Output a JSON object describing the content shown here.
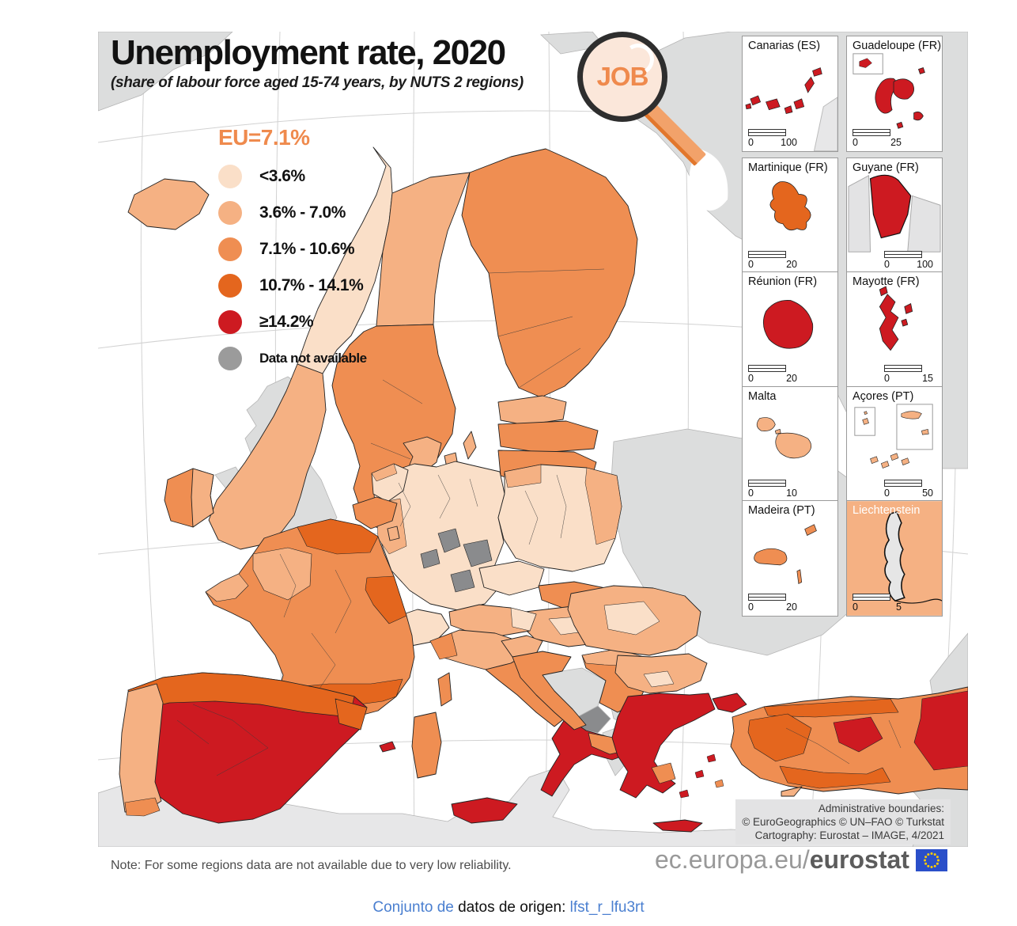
{
  "title": "Unemployment rate, 2020",
  "subtitle": "(share of labour force aged 15-74 years, by NUTS 2 regions)",
  "logo_text": "JOB",
  "legend": {
    "eu_label": "EU=7.1%",
    "classes": [
      {
        "label": "<3.6%",
        "color": "#fadfc8"
      },
      {
        "label": "3.6% - 7.0%",
        "color": "#f5b183"
      },
      {
        "label": "7.1% - 10.6%",
        "color": "#ef8e52"
      },
      {
        "label": "10.7% - 14.1%",
        "color": "#e4661e"
      },
      {
        "label": "≥14.2%",
        "color": "#cd1a21"
      },
      {
        "label": "Data not available",
        "color": "#9b9b9b"
      }
    ]
  },
  "colors": {
    "c1": "#fadfc8",
    "c2": "#f5b183",
    "c3": "#ef8e52",
    "c4": "#e4661e",
    "c5": "#cd1a21",
    "na": "#9b9b9b",
    "na2": "#8a8b8d",
    "noneu": "#dcdddd",
    "noneu2": "#e7e7e8",
    "sea": "#ffffff",
    "eu": "#ef8a4d",
    "link": "#4a7fd0",
    "flag": "#2a4fc9",
    "star": "#ffcc00"
  },
  "insets": [
    {
      "title": "Canarias (ES)",
      "scale_left": "0",
      "scale_right": "100",
      "align": "left"
    },
    {
      "title": "Guadeloupe (FR)",
      "scale_left": "0",
      "scale_right": "25",
      "align": "left"
    },
    {
      "title": "Martinique (FR)",
      "scale_left": "0",
      "scale_right": "20",
      "align": "left"
    },
    {
      "title": "Guyane (FR)",
      "scale_left": "0",
      "scale_right": "100",
      "align": "right"
    },
    {
      "title": "Réunion (FR)",
      "scale_left": "0",
      "scale_right": "20",
      "align": "left"
    },
    {
      "title": "Mayotte (FR)",
      "scale_left": "0",
      "scale_right": "15",
      "align": "right"
    },
    {
      "title": "Malta",
      "scale_left": "0",
      "scale_right": "10",
      "align": "left"
    },
    {
      "title": "Açores (PT)",
      "scale_left": "0",
      "scale_right": "50",
      "align": "right"
    },
    {
      "title": "Madeira (PT)",
      "scale_left": "0",
      "scale_right": "20",
      "align": "left"
    },
    {
      "title": "Liechtenstein",
      "scale_left": "0",
      "scale_right": "5",
      "align": "left"
    }
  ],
  "attribution": {
    "line1": "Administrative boundaries:",
    "line2": "© EuroGeographics © UN–FAO © Turkstat",
    "line3": "Cartography: Eurostat – IMAGE, 4/2021"
  },
  "note": "Note: For some regions data are not available due to very low reliability.",
  "footer": {
    "url_prefix": "ec.europa.eu/",
    "url_bold": "eurostat"
  },
  "caption": {
    "part1": "Conjunto de",
    "part2": " datos de origen: ",
    "link": "lfst_r_lfu3rt"
  },
  "map_data": {
    "type": "choropleth_map",
    "measure": "Unemployment rate 2020, % of labour force aged 15-74, NUTS 2 regions",
    "class_breaks": [
      "<3.6",
      "3.6-7.0",
      "7.1-10.6",
      "10.7-14.1",
      ">=14.2",
      "no data"
    ],
    "eu_average": "7.1%",
    "regions": {
      "Iceland": "3.6-7.0",
      "Norway": "<3.6 / 3.6-7.0",
      "Sweden": "3.6-7.0 north, 7.1-10.6 south",
      "Finland": "7.1-10.6",
      "Estonia": "3.6-7.0",
      "Latvia": "7.1-10.6",
      "Lithuania": "7.1-10.6",
      "United Kingdom": "no data",
      "Ireland": "3.6-10.6",
      "Denmark": "3.6-7.0",
      "Germany": "<3.6-7.0, several regions no data",
      "Netherlands": "<3.6-7.0",
      "Belgium": "<3.6-10.6",
      "Luxembourg": "3.6-7.0",
      "France": "7.1-14.1",
      "Switzerland": "<3.6-7.0",
      "Austria": "<3.6-7.0",
      "Czechia": "<3.6",
      "Poland": "<3.6-7.0",
      "Slovakia": "3.6-10.6",
      "Hungary": "<3.6-7.0",
      "Slovenia": "3.6-7.0",
      "Croatia": "7.1-10.6",
      "Italy": "3.6-10.6 north/centre, >=14.2 south",
      "Spain": "10.7-14.1 north, >=14.2 centre/south",
      "Portugal": "3.6-10.6",
      "Romania": "<3.6-7.0",
      "Bulgaria": "<3.6-7.0",
      "Serbia": "3.6-10.6",
      "Bosnia and Herzegovina": "no data",
      "Montenegro": "no data",
      "Kosovo": "no data",
      "Albania": "no data",
      "North Macedonia": ">=14.2",
      "Greece": ">=14.2",
      "Turkey": "7.1-14.1 with >=14.2 east and centre",
      "Cyprus": "3.6-7.0",
      "Malta": "3.6-7.0",
      "Canarias": ">=14.2",
      "Guadeloupe": ">=14.2",
      "Martinique": "10.7-14.1",
      "Guyane": ">=14.2",
      "Reunion": ">=14.2",
      "Mayotte": ">=14.2",
      "Acores": "3.6-7.0",
      "Madeira": "7.1-10.6",
      "Liechtenstein": "no data"
    }
  }
}
